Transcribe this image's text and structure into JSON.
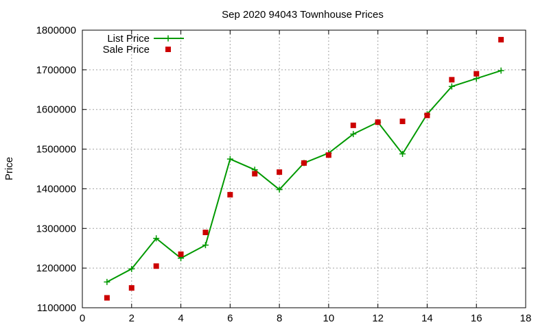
{
  "chart_data": {
    "type": "line",
    "title": "Sep 2020 94043 Townhouse Prices",
    "xlabel": "",
    "ylabel": "Price",
    "xlim": [
      0,
      18
    ],
    "ylim": [
      1100000,
      1800000
    ],
    "xticks": [
      0,
      2,
      4,
      6,
      8,
      10,
      12,
      14,
      16,
      18
    ],
    "yticks": [
      1100000,
      1200000,
      1300000,
      1400000,
      1500000,
      1600000,
      1700000,
      1800000
    ],
    "grid": true,
    "legend_position": "top-left",
    "series": [
      {
        "name": "List Price",
        "style": "line-points",
        "color": "#009900",
        "marker": "plus",
        "x": [
          1,
          2,
          3,
          4,
          5,
          6,
          7,
          8,
          9,
          10,
          11,
          12,
          13,
          14,
          15,
          16,
          17
        ],
        "y": [
          1165000,
          1198000,
          1275000,
          1225000,
          1258000,
          1475000,
          1448000,
          1398000,
          1465000,
          1490000,
          1538000,
          1568000,
          1488000,
          1588000,
          1658000,
          1678000,
          1698000
        ]
      },
      {
        "name": "Sale Price",
        "style": "points",
        "color": "#cc0000",
        "marker": "square",
        "x": [
          1,
          2,
          3,
          4,
          5,
          6,
          7,
          8,
          9,
          10,
          11,
          12,
          13,
          14,
          15,
          16,
          17
        ],
        "y": [
          1125000,
          1150000,
          1205000,
          1235000,
          1290000,
          1385000,
          1438000,
          1442000,
          1465000,
          1485000,
          1560000,
          1568000,
          1570000,
          1585000,
          1675000,
          1690000,
          1776000
        ]
      }
    ]
  }
}
